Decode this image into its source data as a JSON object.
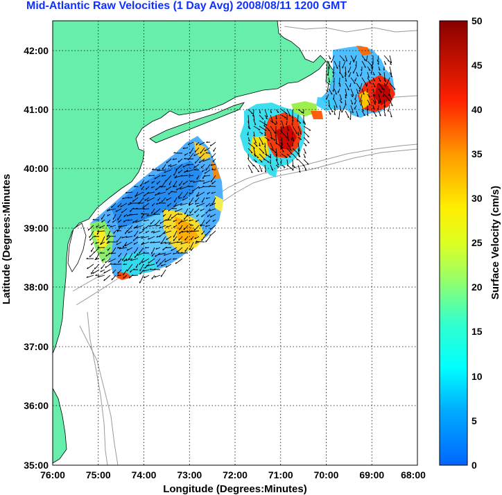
{
  "title": "Mid-Atlantic Raw Velocities (1 Day Avg) 2008/08/11 1200 GMT",
  "map": {
    "xlabel": "Longitude (Degrees:Minutes)",
    "ylabel": "Latitude (Degrees:Minutes",
    "x_ticks": [
      "76:00",
      "75:00",
      "74:00",
      "73:00",
      "72:00",
      "71:00",
      "70:00",
      "69:00",
      "68:00"
    ],
    "y_ticks": [
      "42:00",
      "41:00",
      "40:00",
      "39:00",
      "38:00",
      "37:00",
      "36:00",
      "35:00"
    ],
    "land_color": "#66eeaa",
    "grid": "dotted"
  },
  "colorbar": {
    "label": "Surface Velocity (cm/s)",
    "ticks": [
      "50",
      "45",
      "40",
      "35",
      "30",
      "25",
      "20",
      "15",
      "10",
      "5",
      "0"
    ],
    "range": [
      0,
      50
    ],
    "colormap": "jet"
  },
  "chart_data": {
    "type": "heatmap",
    "title": "Mid-Atlantic Raw Velocities (1 Day Avg) 2008/08/11 1200 GMT",
    "xlabel": "Longitude (Degrees:Minutes)",
    "ylabel": "Latitude (Degrees:Minutes",
    "xlim": [
      -76,
      -68
    ],
    "ylim": [
      35,
      42.5
    ],
    "zlabel": "Surface Velocity (cm/s)",
    "zlim": [
      0,
      50
    ],
    "regions": [
      {
        "lon": -74.3,
        "lat": 39.3,
        "speed": 10
      },
      {
        "lon": -73.2,
        "lat": 38.9,
        "speed": 28
      },
      {
        "lon": -74.8,
        "lat": 38.6,
        "speed": 25
      },
      {
        "lon": -73.0,
        "lat": 39.9,
        "speed": 17
      },
      {
        "lon": -70.9,
        "lat": 40.5,
        "speed": 42
      },
      {
        "lon": -71.6,
        "lat": 40.8,
        "speed": 18
      },
      {
        "lon": -69.0,
        "lat": 41.2,
        "speed": 45
      },
      {
        "lon": -69.5,
        "lat": 41.6,
        "speed": 10
      }
    ]
  }
}
